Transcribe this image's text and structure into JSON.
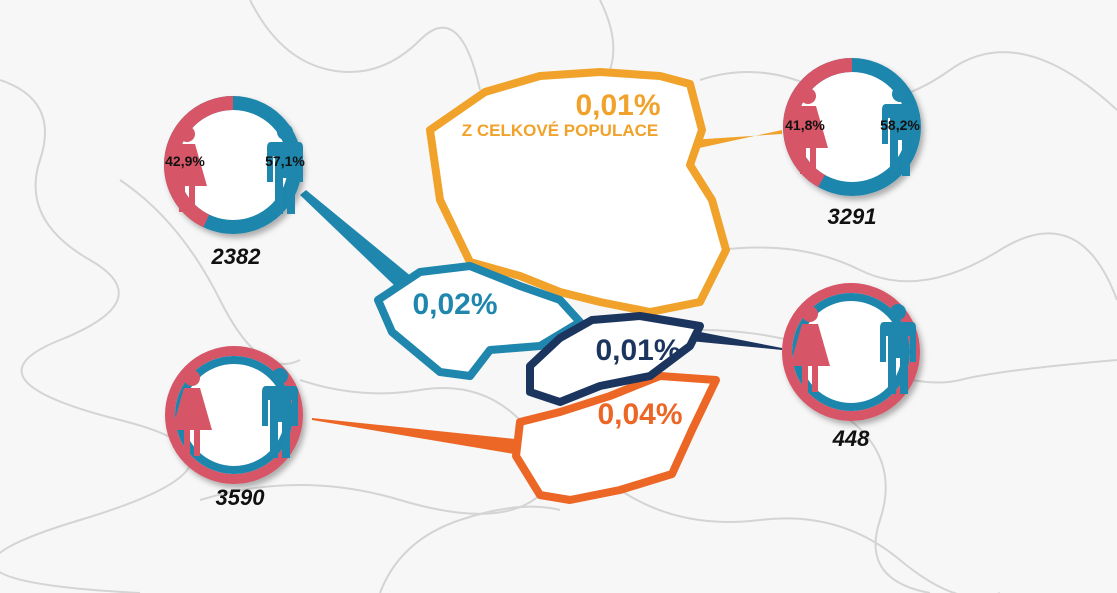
{
  "colors": {
    "female": "#d65566",
    "male": "#1f86ad",
    "poland": "#f0a22a",
    "czechia": "#1f86ad",
    "slovakia": "#1b355e",
    "hungary": "#ec6625"
  },
  "countries": {
    "poland": {
      "share": "0,01%",
      "subtitle": "Z CELKOVÉ POPULACE"
    },
    "czechia": {
      "share": "0,02%"
    },
    "slovakia": {
      "share": "0,01%"
    },
    "hungary": {
      "share": "0,04%"
    }
  },
  "rings": {
    "czechia": {
      "female_pct": "42,9%",
      "male_pct": "57,1%",
      "female_value": 42.9,
      "count": "2382"
    },
    "poland": {
      "female_pct": "41,8%",
      "male_pct": "58,2%",
      "female_value": 41.8,
      "count": "3291"
    },
    "slovakia": {
      "count": "448"
    },
    "hungary": {
      "count": "3590"
    }
  }
}
